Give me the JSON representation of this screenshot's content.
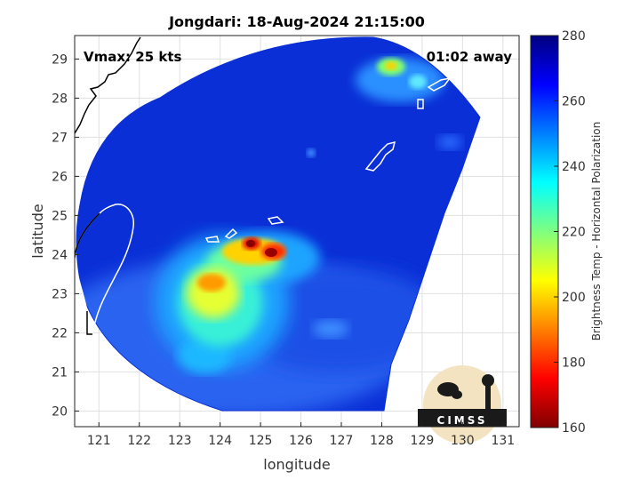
{
  "chart_data": {
    "type": "heatmap",
    "title": "Jongdari: 18-Aug-2024 21:15:00",
    "xlabel": "longitude",
    "ylabel": "latitude",
    "xlim": [
      120.4,
      131.4
    ],
    "ylim": [
      19.6,
      29.6
    ],
    "xticks": [
      121,
      122,
      123,
      124,
      125,
      126,
      127,
      128,
      129,
      130,
      131
    ],
    "yticks": [
      20,
      21,
      22,
      23,
      24,
      25,
      26,
      27,
      28,
      29
    ],
    "grid": true,
    "annotations": {
      "vmax": "Vmax: 25 kts",
      "away": "01:02 away"
    },
    "colorbar": {
      "label": "Brightness Temp - Horizontal Polarization",
      "range": [
        160,
        280
      ],
      "ticks": [
        160,
        180,
        200,
        220,
        240,
        260,
        280
      ],
      "colormap": "jet"
    },
    "cold_features": [
      {
        "lon": 124.7,
        "lat": 24.2,
        "min_tb": 175
      },
      {
        "lon": 125.3,
        "lat": 24.0,
        "min_tb": 180
      },
      {
        "lon": 123.8,
        "lat": 23.2,
        "min_tb": 195
      },
      {
        "lon": 124.2,
        "lat": 23.9,
        "min_tb": 205
      },
      {
        "lon": 123.5,
        "lat": 22.7,
        "min_tb": 215
      },
      {
        "lon": 128.2,
        "lat": 28.8,
        "min_tb": 215
      }
    ]
  },
  "logo": {
    "text": "CIMSS"
  },
  "colors": {
    "background_tb": "#0a2fd6",
    "land_outline": "#ffffff",
    "coast_outline": "#000000"
  }
}
